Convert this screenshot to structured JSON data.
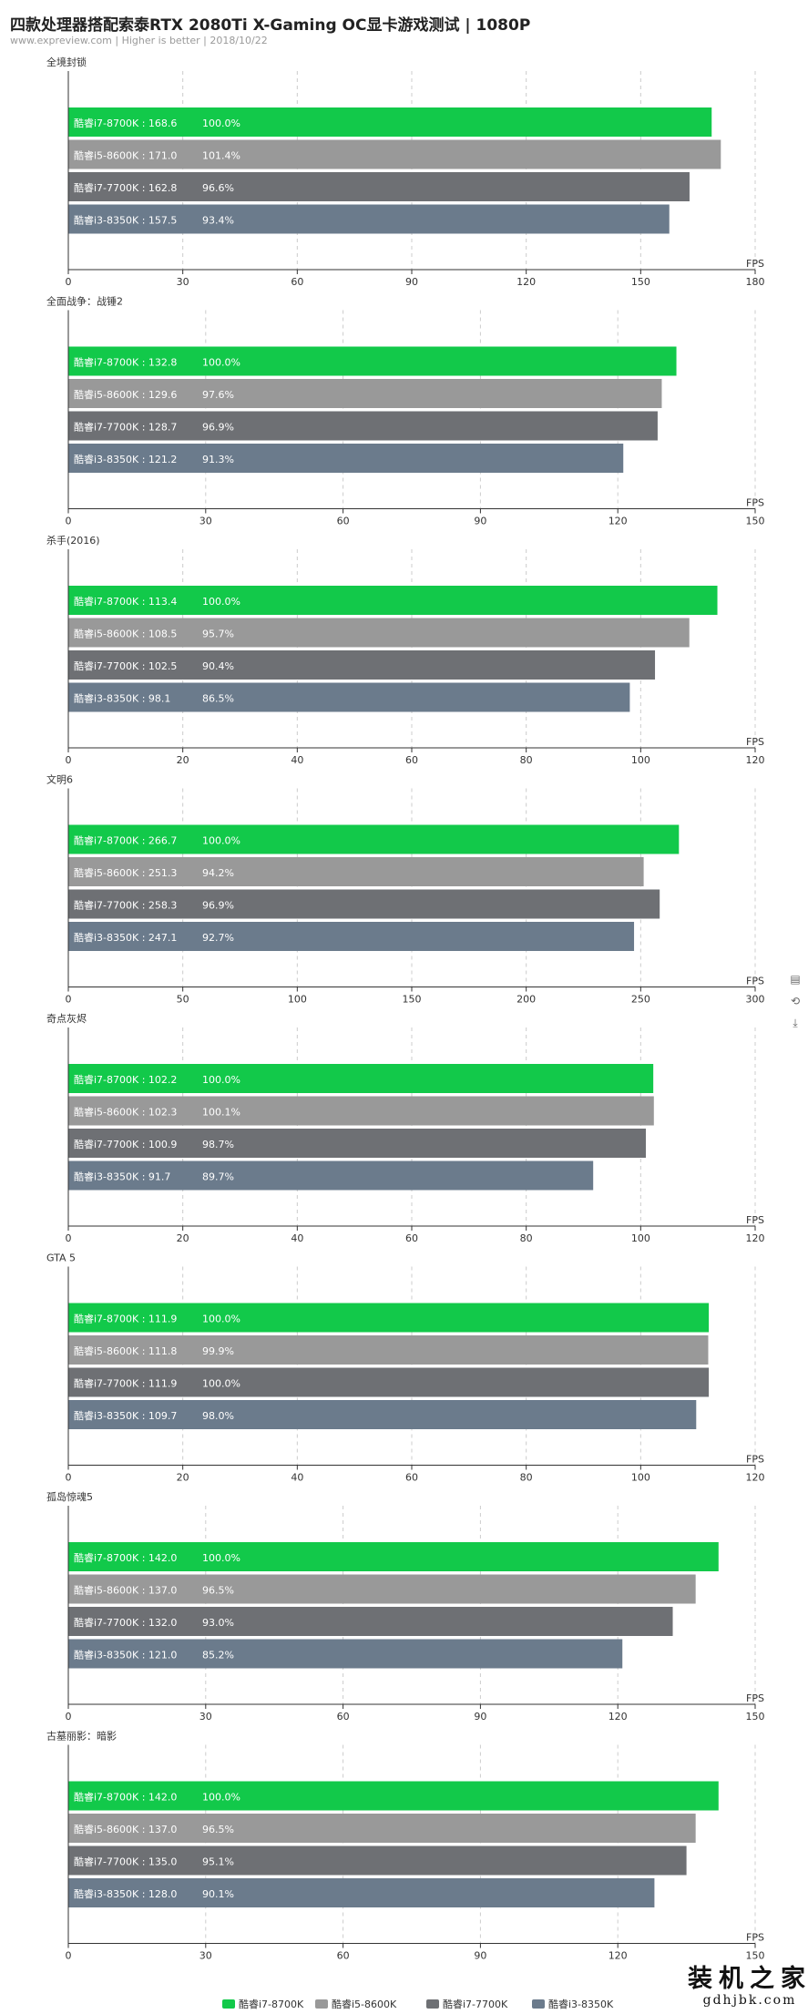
{
  "title": "四款处理器搭配索泰RTX 2080Ti X-Gaming OC显卡游戏测试 | 1080P",
  "subtitle": "www.expreview.com | Higher is better | 2018/10/22",
  "toolbox": {
    "data_view_icon": "▤",
    "restore_icon": "⟲",
    "save_icon": "⤓"
  },
  "watermark": {
    "text": "装机之家",
    "domain": "gdhjbk.com"
  },
  "colors": {
    "series": [
      "#12c94a",
      "#999999",
      "#6e7074",
      "#6b7b8c"
    ],
    "axis": "#333333",
    "grid": "#cccccc",
    "bar_label": "#ffffff"
  },
  "legend": {
    "position": "bottom-center",
    "items": [
      "酷睿i7-8700K",
      "酷睿i5-8600K",
      "酷睿i7-7700K",
      "酷睿i3-8350K"
    ]
  },
  "chart_data": [
    {
      "type": "bar",
      "orientation": "horizontal",
      "title": "全境封锁",
      "xlabel": "FPS",
      "xlim": [
        0,
        180
      ],
      "ticks": [
        "0",
        "30",
        "60",
        "90",
        "120",
        "150",
        "180"
      ],
      "grid": true,
      "categories": [
        "酷睿i7-8700K",
        "酷睿i5-8600K",
        "酷睿i7-7700K",
        "酷睿i3-8350K"
      ],
      "values": [
        168.6,
        171.0,
        162.8,
        157.5
      ],
      "percent_labels": [
        "100.0%",
        "101.4%",
        "96.6%",
        "93.4%"
      ]
    },
    {
      "type": "bar",
      "orientation": "horizontal",
      "title": "全面战争：战锤2",
      "xlabel": "FPS",
      "xlim": [
        0,
        150
      ],
      "ticks": [
        "0",
        "30",
        "60",
        "90",
        "120",
        "150"
      ],
      "grid": true,
      "categories": [
        "酷睿i7-8700K",
        "酷睿i5-8600K",
        "酷睿i7-7700K",
        "酷睿i3-8350K"
      ],
      "values": [
        132.8,
        129.6,
        128.7,
        121.2
      ],
      "percent_labels": [
        "100.0%",
        "97.6%",
        "96.9%",
        "91.3%"
      ]
    },
    {
      "type": "bar",
      "orientation": "horizontal",
      "title": "杀手(2016)",
      "xlabel": "FPS",
      "xlim": [
        0,
        120
      ],
      "ticks": [
        "0",
        "20",
        "40",
        "60",
        "80",
        "100",
        "120"
      ],
      "grid": true,
      "categories": [
        "酷睿i7-8700K",
        "酷睿i5-8600K",
        "酷睿i7-7700K",
        "酷睿i3-8350K"
      ],
      "values": [
        113.4,
        108.5,
        102.5,
        98.1
      ],
      "percent_labels": [
        "100.0%",
        "95.7%",
        "90.4%",
        "86.5%"
      ]
    },
    {
      "type": "bar",
      "orientation": "horizontal",
      "title": "文明6",
      "xlabel": "FPS",
      "xlim": [
        0,
        300
      ],
      "ticks": [
        "0",
        "50",
        "100",
        "150",
        "200",
        "250",
        "300"
      ],
      "grid": true,
      "categories": [
        "酷睿i7-8700K",
        "酷睿i5-8600K",
        "酷睿i7-7700K",
        "酷睿i3-8350K"
      ],
      "values": [
        266.7,
        251.3,
        258.3,
        247.1
      ],
      "percent_labels": [
        "100.0%",
        "94.2%",
        "96.9%",
        "92.7%"
      ]
    },
    {
      "type": "bar",
      "orientation": "horizontal",
      "title": "奇点灰烬",
      "xlabel": "FPS",
      "xlim": [
        0,
        120
      ],
      "ticks": [
        "0",
        "20",
        "40",
        "60",
        "80",
        "100",
        "120"
      ],
      "grid": true,
      "categories": [
        "酷睿i7-8700K",
        "酷睿i5-8600K",
        "酷睿i7-7700K",
        "酷睿i3-8350K"
      ],
      "values": [
        102.2,
        102.3,
        100.9,
        91.7
      ],
      "percent_labels": [
        "100.0%",
        "100.1%",
        "98.7%",
        "89.7%"
      ]
    },
    {
      "type": "bar",
      "orientation": "horizontal",
      "title": "GTA 5",
      "xlabel": "FPS",
      "xlim": [
        0,
        120
      ],
      "ticks": [
        "0",
        "20",
        "40",
        "60",
        "80",
        "100",
        "120"
      ],
      "grid": true,
      "categories": [
        "酷睿i7-8700K",
        "酷睿i5-8600K",
        "酷睿i7-7700K",
        "酷睿i3-8350K"
      ],
      "values": [
        111.9,
        111.8,
        111.9,
        109.7
      ],
      "percent_labels": [
        "100.0%",
        "99.9%",
        "100.0%",
        "98.0%"
      ]
    },
    {
      "type": "bar",
      "orientation": "horizontal",
      "title": "孤岛惊魂5",
      "xlabel": "FPS",
      "xlim": [
        0,
        150
      ],
      "ticks": [
        "0",
        "30",
        "60",
        "90",
        "120",
        "150"
      ],
      "grid": true,
      "categories": [
        "酷睿i7-8700K",
        "酷睿i5-8600K",
        "酷睿i7-7700K",
        "酷睿i3-8350K"
      ],
      "values": [
        142.0,
        137.0,
        132.0,
        121.0
      ],
      "percent_labels": [
        "100.0%",
        "96.5%",
        "93.0%",
        "85.2%"
      ]
    },
    {
      "type": "bar",
      "orientation": "horizontal",
      "title": "古墓丽影：暗影",
      "xlabel": "FPS",
      "xlim": [
        0,
        150
      ],
      "ticks": [
        "0",
        "30",
        "60",
        "90",
        "120",
        "150"
      ],
      "grid": true,
      "categories": [
        "酷睿i7-8700K",
        "酷睿i5-8600K",
        "酷睿i7-7700K",
        "酷睿i3-8350K"
      ],
      "values": [
        142.0,
        137.0,
        135.0,
        128.0
      ],
      "percent_labels": [
        "100.0%",
        "96.5%",
        "95.1%",
        "90.1%"
      ]
    }
  ]
}
